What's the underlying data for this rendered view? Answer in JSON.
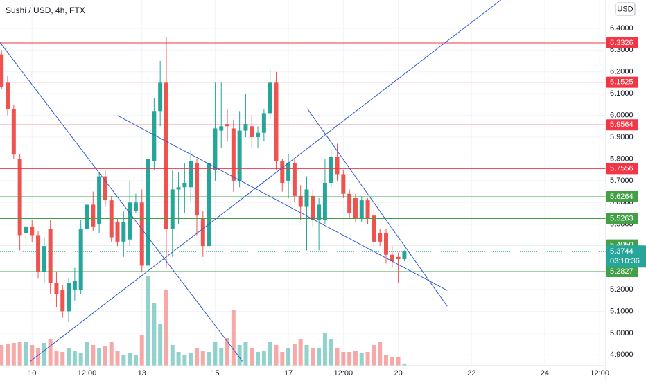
{
  "chart_data": {
    "type": "candlestick",
    "title": "Sushi / USD, 4h, FTX",
    "currency": "USD",
    "x": [
      -20,
      -16,
      -12,
      -8,
      -4,
      0,
      4,
      8,
      12,
      16,
      20,
      24,
      28,
      32,
      36,
      40,
      44,
      48,
      52,
      56,
      60,
      64,
      68,
      72,
      76,
      80,
      84,
      88,
      92,
      96,
      100,
      104,
      108,
      112,
      116,
      120,
      124,
      128,
      132,
      136,
      140,
      144,
      148,
      152,
      156,
      160,
      164,
      168,
      172,
      176,
      180,
      184,
      188,
      192,
      196,
      200,
      204,
      208,
      212,
      216,
      220,
      224,
      228,
      232,
      236,
      240,
      244
    ],
    "open": [
      6.28,
      6.15,
      6.03,
      5.8,
      5.46,
      5.49,
      5.45,
      5.28,
      5.48,
      5.23,
      5.2,
      5.1,
      5.2,
      5.2,
      5.48,
      5.59,
      5.5,
      5.72,
      5.61,
      5.51,
      5.42,
      5.43,
      5.56,
      5.6,
      5.31,
      5.79,
      6.02,
      6.15,
      5.48,
      5.66,
      5.67,
      5.67,
      5.78,
      5.53,
      5.4,
      5.75,
      5.93,
      5.96,
      5.94,
      5.7,
      5.93,
      5.95,
      5.9,
      5.92,
      6.01,
      6.15,
      5.79,
      5.7,
      5.78,
      5.63,
      5.58,
      5.63,
      5.52,
      5.52,
      5.69,
      5.81,
      5.73,
      5.64,
      5.62,
      5.53,
      5.61,
      5.54,
      5.46,
      5.46,
      5.36,
      5.35,
      5.34
    ],
    "high": [
      6.3,
      6.18,
      6.05,
      5.82,
      5.55,
      5.52,
      5.47,
      5.44,
      5.52,
      5.28,
      5.22,
      5.25,
      5.3,
      5.52,
      5.62,
      5.65,
      5.74,
      5.75,
      5.63,
      5.53,
      5.56,
      5.7,
      5.64,
      5.66,
      6.18,
      6.08,
      6.25,
      6.36,
      5.75,
      5.74,
      5.78,
      5.84,
      5.8,
      5.56,
      5.8,
      6.15,
      6.15,
      6.03,
      5.98,
      6.02,
      6.1,
      6.0,
      5.95,
      6.03,
      6.21,
      6.2,
      5.8,
      5.82,
      5.8,
      5.68,
      5.72,
      5.66,
      5.62,
      5.8,
      5.84,
      5.87,
      5.75,
      5.66,
      5.64,
      5.63,
      5.62,
      5.57,
      5.48,
      5.48,
      5.4,
      5.37,
      5.38
    ],
    "low": [
      6.12,
      6.0,
      5.8,
      5.38,
      5.4,
      5.42,
      5.25,
      5.23,
      5.18,
      5.12,
      5.07,
      5.05,
      5.15,
      5.18,
      5.45,
      5.47,
      5.46,
      5.58,
      5.42,
      5.4,
      5.35,
      5.4,
      5.55,
      5.28,
      5.26,
      5.75,
      5.95,
      5.3,
      5.35,
      5.5,
      5.55,
      5.6,
      5.45,
      5.35,
      5.38,
      5.7,
      5.85,
      5.88,
      5.65,
      5.67,
      5.9,
      5.85,
      5.85,
      5.88,
      5.98,
      5.75,
      5.65,
      5.62,
      5.6,
      5.52,
      5.38,
      5.49,
      5.38,
      5.5,
      5.67,
      5.7,
      5.62,
      5.53,
      5.51,
      5.51,
      5.5,
      5.4,
      5.4,
      5.32,
      5.3,
      5.23,
      5.33
    ],
    "close": [
      6.13,
      6.03,
      5.82,
      5.45,
      5.49,
      5.45,
      5.28,
      5.4,
      5.23,
      5.18,
      5.1,
      5.23,
      5.24,
      5.48,
      5.59,
      5.49,
      5.72,
      5.61,
      5.44,
      5.42,
      5.51,
      5.6,
      5.6,
      5.31,
      5.8,
      6.02,
      6.15,
      5.48,
      5.66,
      5.67,
      5.69,
      5.79,
      5.54,
      5.4,
      5.78,
      5.94,
      5.95,
      5.95,
      5.7,
      5.93,
      5.96,
      5.9,
      5.92,
      6.01,
      6.15,
      5.79,
      5.69,
      5.78,
      5.63,
      5.58,
      5.66,
      5.52,
      5.59,
      5.69,
      5.81,
      5.73,
      5.64,
      5.55,
      5.53,
      5.61,
      5.53,
      5.42,
      5.42,
      5.36,
      5.33,
      5.34,
      5.3744
    ],
    "volume": [
      30,
      32,
      33,
      35,
      34,
      30,
      25,
      33,
      38,
      22,
      20,
      25,
      22,
      18,
      35,
      30,
      25,
      28,
      35,
      22,
      15,
      18,
      15,
      45,
      130,
      90,
      60,
      110,
      30,
      20,
      15,
      18,
      25,
      22,
      20,
      35,
      25,
      40,
      80,
      30,
      35,
      25,
      20,
      22,
      35,
      30,
      20,
      25,
      32,
      38,
      30,
      25,
      25,
      48,
      38,
      25,
      20,
      20,
      22,
      18,
      20,
      30,
      35,
      15,
      12,
      12,
      3
    ],
    "up_color": "#26a69a",
    "down_color": "#ef5350",
    "xlim": [
      -21,
      376
    ],
    "ylim": [
      4.85,
      6.53
    ],
    "xticks": [
      {
        "value": 0,
        "label": "10"
      },
      {
        "value": 36,
        "label": "12:00"
      },
      {
        "value": 72,
        "label": "13"
      },
      {
        "value": 120,
        "label": "15"
      },
      {
        "value": 168,
        "label": "17"
      },
      {
        "value": 204,
        "label": "12:00"
      },
      {
        "value": 240,
        "label": "20"
      },
      {
        "value": 288,
        "label": "22"
      },
      {
        "value": 336,
        "label": "24"
      },
      {
        "value": 372,
        "label": "12:00"
      }
    ],
    "yticks": [
      {
        "value": 4.9,
        "label": "4.9000"
      },
      {
        "value": 5.0,
        "label": "5.0000"
      },
      {
        "value": 5.1,
        "label": "5.1000"
      },
      {
        "value": 5.2,
        "label": "5.2000"
      },
      {
        "value": 5.5,
        "label": "5.5000"
      },
      {
        "value": 5.6,
        "label": "5.6000"
      },
      {
        "value": 5.7,
        "label": "5.7000"
      },
      {
        "value": 5.8,
        "label": "5.8000"
      },
      {
        "value": 5.9,
        "label": "5.9000"
      },
      {
        "value": 6.0,
        "label": "6.0000"
      },
      {
        "value": 6.1,
        "label": "6.1000"
      },
      {
        "value": 6.2,
        "label": "6.2000"
      },
      {
        "value": 6.3,
        "label": "6.3000"
      },
      {
        "value": 6.4,
        "label": "6.4000"
      }
    ],
    "grid": true,
    "hlines": [
      {
        "value": 6.3326,
        "label": "6.3326",
        "color": "#f23645"
      },
      {
        "value": 6.1525,
        "label": "6.1525",
        "color": "#f23645"
      },
      {
        "value": 5.9564,
        "label": "5.9564",
        "color": "#f23645"
      },
      {
        "value": 5.7556,
        "label": "5.7556",
        "color": "#f23645"
      },
      {
        "value": 5.6264,
        "label": "5.6264",
        "color": "#43a047"
      },
      {
        "value": 5.5263,
        "label": "5.5263",
        "color": "#43a047"
      },
      {
        "value": 5.405,
        "label": "5.4050",
        "color": "#43a047"
      },
      {
        "value": 5.2827,
        "label": "5.2827",
        "color": "#43a047"
      }
    ],
    "trendlines": [
      {
        "x": [
          -21.1,
          137.8
        ],
        "y": [
          6.336,
          4.871
        ],
        "color": "#2f5bd3"
      },
      {
        "x": [
          -1.1,
          307.9
        ],
        "y": [
          4.871,
          6.534
        ],
        "color": "#2f5bd3"
      },
      {
        "x": [
          56.1,
          272.1
        ],
        "y": [
          5.999,
          5.196
        ],
        "color": "#2f5bd3"
      },
      {
        "x": [
          180.4,
          272.1
        ],
        "y": [
          6.031,
          5.123
        ],
        "color": "#2f5bd3"
      }
    ],
    "last_price": {
      "value": 5.3744,
      "label": "5.3744",
      "countdown": "03:10:36",
      "color": "#26a69a"
    }
  }
}
